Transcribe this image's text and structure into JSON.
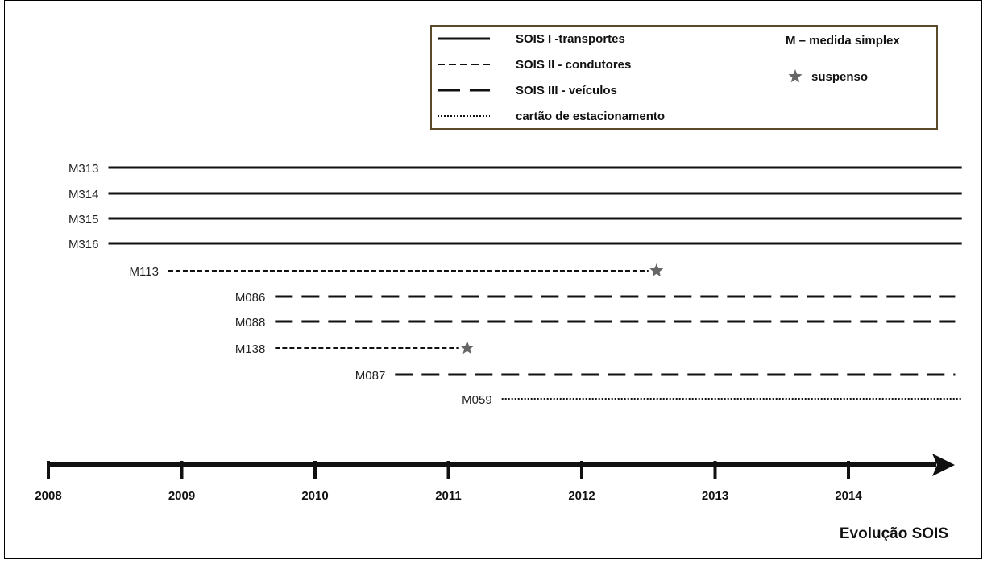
{
  "legend": {
    "entries": [
      {
        "label": "SOIS I -transportes",
        "style": "solid"
      },
      {
        "label": "SOIS II - condutores",
        "style": "short-dash"
      },
      {
        "label": "SOIS III - veículos",
        "style": "long-dash"
      },
      {
        "label": "cartão de estacionamento",
        "style": "dotted"
      }
    ],
    "simplex_note": "M – medida simplex",
    "suspended_note": "suspenso",
    "suspended_icon": "star-icon"
  },
  "timeline": {
    "title": "Evolução SOIS",
    "years": [
      "2008",
      "2009",
      "2010",
      "2011",
      "2012",
      "2013",
      "2014"
    ]
  },
  "measures": [
    {
      "label": "M313",
      "style": "solid",
      "start": 2008.45,
      "end": 2014.85,
      "suspended": false
    },
    {
      "label": "M314",
      "style": "solid",
      "start": 2008.45,
      "end": 2014.85,
      "suspended": false
    },
    {
      "label": "M315",
      "style": "solid",
      "start": 2008.45,
      "end": 2014.85,
      "suspended": false
    },
    {
      "label": "M316",
      "style": "solid",
      "start": 2008.45,
      "end": 2014.85,
      "suspended": false
    },
    {
      "label": "M113",
      "style": "short-dash",
      "start": 2008.9,
      "end": 2012.5,
      "suspended": true
    },
    {
      "label": "M086",
      "style": "long-dash",
      "start": 2009.7,
      "end": 2014.8,
      "suspended": false
    },
    {
      "label": "M088",
      "style": "long-dash",
      "start": 2009.7,
      "end": 2014.8,
      "suspended": false
    },
    {
      "label": "M138",
      "style": "short-dash",
      "start": 2009.7,
      "end": 2011.08,
      "suspended": true
    },
    {
      "label": "M087",
      "style": "long-dash",
      "start": 2010.6,
      "end": 2014.8,
      "suspended": false
    },
    {
      "label": "M059",
      "style": "dotted",
      "start": 2011.4,
      "end": 2014.85,
      "suspended": false
    }
  ],
  "colors": {
    "line": "#111111",
    "star": "#666666",
    "legend_border": "#5a4a2a",
    "frame_border": "#000000"
  }
}
